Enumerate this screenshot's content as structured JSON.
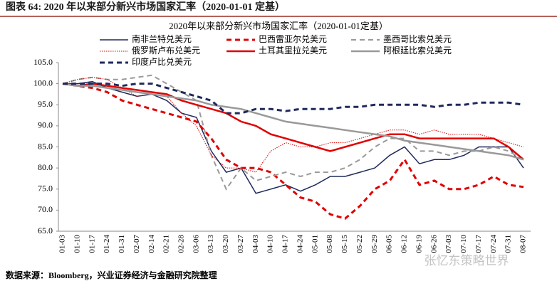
{
  "header": {
    "title": "图表 64:  2020 年以来部分新兴市场国家汇率（2020-01-01 定基）"
  },
  "footer": {
    "source": "数据来源：Bloomberg，兴业证券经济与金融研究院整理"
  },
  "watermark": {
    "text": "张忆东策略世界"
  },
  "chart_data": {
    "type": "line",
    "title": "2020年以来部分新兴市场国家汇率（2020-01-01定基）",
    "categories": [
      "01-03",
      "01-10",
      "01-17",
      "01-24",
      "01-31",
      "02-07",
      "02-14",
      "02-21",
      "02-28",
      "03-06",
      "03-13",
      "03-20",
      "03-27",
      "04-03",
      "04-10",
      "04-17",
      "04-24",
      "05-01",
      "05-08",
      "05-15",
      "05-22",
      "05-29",
      "06-05",
      "06-12",
      "06-19",
      "06-26",
      "07-03",
      "07-10",
      "07-17",
      "07-24",
      "07-31",
      "08-07"
    ],
    "ylim": [
      65,
      105
    ],
    "yticks": [
      {
        "value": 65,
        "label": "65.0"
      },
      {
        "value": 70,
        "label": "70.0"
      },
      {
        "value": 75,
        "label": "75.0"
      },
      {
        "value": 80,
        "label": "80.0"
      },
      {
        "value": 85,
        "label": "85.0"
      },
      {
        "value": 90,
        "label": "90.0"
      },
      {
        "value": 95,
        "label": "95.0"
      },
      {
        "value": 100,
        "label": "100.0"
      },
      {
        "value": 105,
        "label": "105.0"
      }
    ],
    "grid": false,
    "series": [
      {
        "name": "南非兰特兑美元",
        "color": "#1f2a5c",
        "line_style": "solid",
        "line_width": 1.5,
        "values": [
          100,
          100,
          100.5,
          99,
          98,
          97,
          97.5,
          96,
          93,
          92,
          84,
          79,
          80,
          74,
          75,
          76,
          74.5,
          76,
          78,
          78,
          79,
          80,
          83,
          85,
          81,
          82,
          82,
          83,
          85,
          85,
          85,
          80
        ]
      },
      {
        "name": "巴西雷亚尔兑美元",
        "color": "#e00000",
        "line_style": "dashed",
        "line_width": 3,
        "values": [
          100,
          99.5,
          99,
          98,
          96,
          95,
          94,
          93,
          92,
          91,
          87,
          82,
          80,
          80,
          79,
          76,
          73,
          72,
          69,
          68,
          71,
          75,
          77,
          82,
          76,
          77,
          75,
          75,
          76,
          78,
          76,
          75.5
        ]
      },
      {
        "name": "墨西哥比索兑美元",
        "color": "#999999",
        "line_style": "dashed",
        "line_width": 2,
        "values": [
          100,
          101,
          101.5,
          101,
          101,
          101.5,
          102,
          100,
          98,
          96,
          83,
          75,
          80,
          77,
          78,
          79,
          78,
          79,
          79,
          80,
          82,
          85,
          87,
          87,
          84,
          84,
          83,
          84,
          84,
          85,
          84,
          82
        ]
      },
      {
        "name": "俄罗斯卢布兑美元",
        "color": "#e00000",
        "line_style": "dotted",
        "line_width": 1,
        "values": [
          100,
          101,
          101.5,
          101,
          99,
          97,
          97.5,
          97,
          93,
          90,
          83,
          80,
          80,
          79,
          84,
          86,
          85,
          85,
          86,
          86,
          87,
          88,
          89,
          89,
          88,
          89,
          88,
          88,
          88,
          87,
          86,
          85
        ]
      },
      {
        "name": "土耳其里拉兑美元",
        "color": "#e00000",
        "line_style": "solid",
        "line_width": 2.5,
        "values": [
          100,
          99.5,
          100,
          99.5,
          99,
          98.5,
          98,
          97.5,
          96,
          95,
          94,
          93,
          91,
          90,
          88,
          87,
          86,
          85,
          84,
          85,
          86,
          87,
          88,
          88,
          87,
          87,
          87,
          87,
          87,
          87,
          85,
          82
        ]
      },
      {
        "name": "阿根廷比索兑美元",
        "color": "#999999",
        "line_style": "solid",
        "line_width": 2.5,
        "values": [
          100,
          99.5,
          99.5,
          99,
          98.5,
          98,
          97.5,
          97,
          96.5,
          96,
          95,
          94.5,
          94,
          93,
          92,
          91,
          90.5,
          90,
          89.5,
          89,
          88.5,
          88,
          87.5,
          86.5,
          86,
          85.5,
          85,
          84.5,
          84,
          83.5,
          83,
          82
        ]
      },
      {
        "name": "印度卢比兑美元",
        "color": "#1f2a5c",
        "line_style": "dashed",
        "line_width": 3,
        "values": [
          100,
          100,
          100,
          100,
          99.5,
          100,
          100,
          99,
          98,
          97,
          96,
          93,
          93,
          94,
          94,
          93.5,
          94,
          94,
          94,
          94.5,
          94.5,
          95,
          95,
          95,
          95,
          94.5,
          95,
          95,
          95.5,
          95.5,
          95.5,
          95
        ]
      }
    ]
  }
}
